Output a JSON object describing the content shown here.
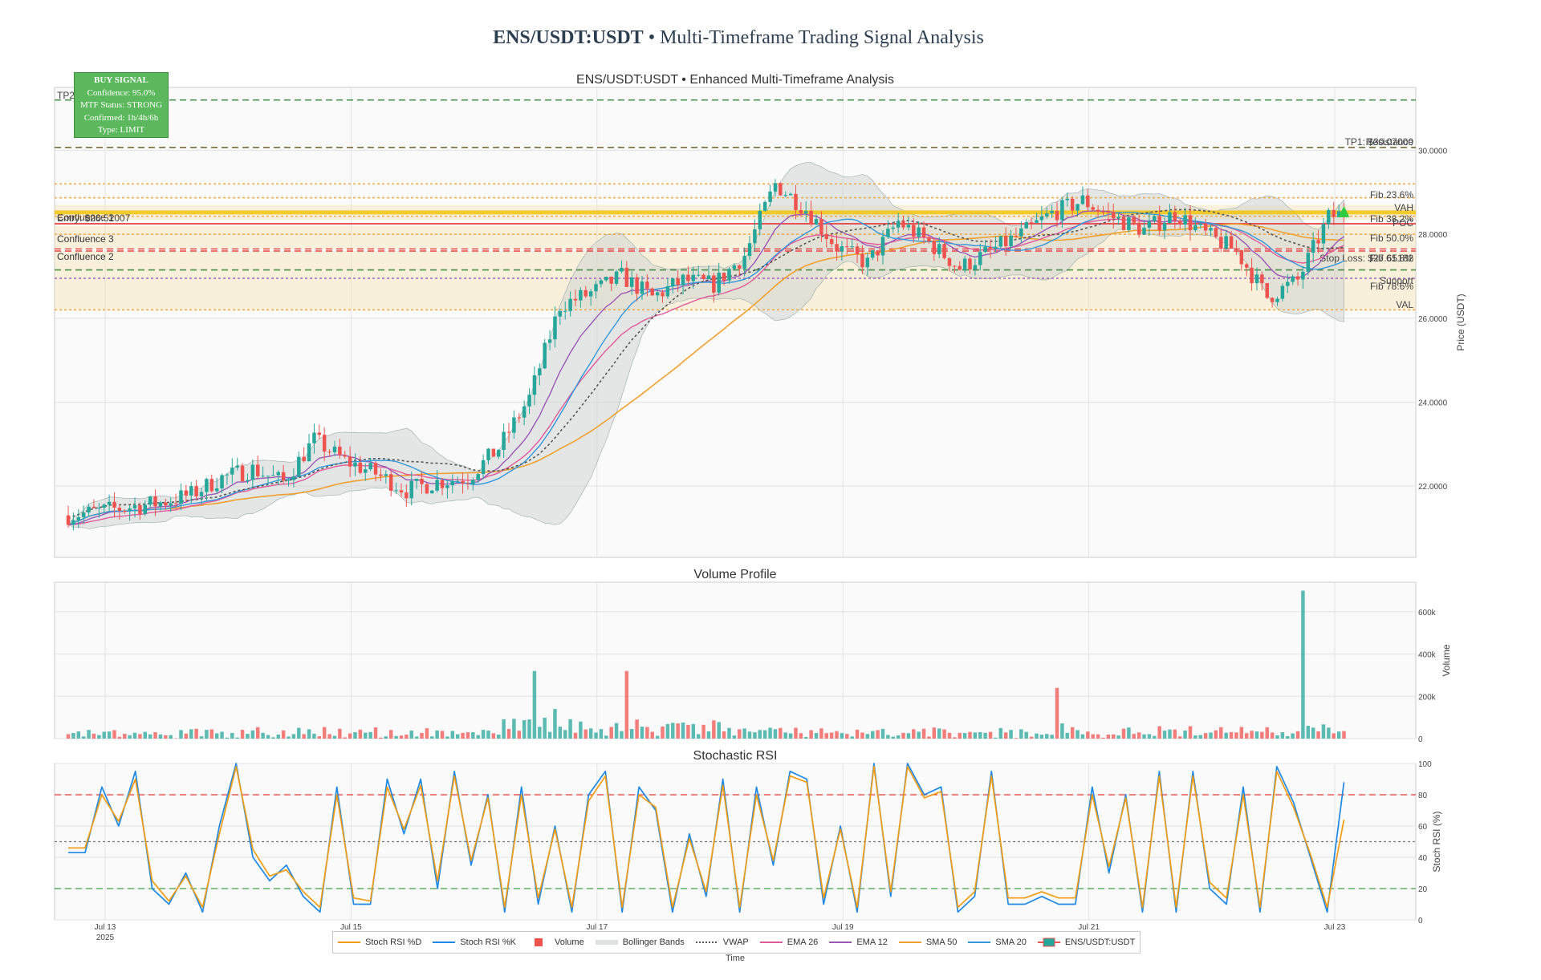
{
  "page": {
    "title_bold": "ENS/USDT:USDT",
    "title_rest": " • Multi-Timeframe Trading Signal Analysis"
  },
  "signal_box": {
    "header": "BUY SIGNAL",
    "lines": [
      "Confidence: 95.0%",
      "MTF Status: STRONG",
      "Confirmed: 1h/4h/6h",
      "Type: LIMIT"
    ],
    "color": "#5cb85c"
  },
  "legend": {
    "items": [
      {
        "label": "Stoch RSI %D",
        "kind": "line",
        "color": "#f39c12"
      },
      {
        "label": "Stoch RSI %K",
        "kind": "line",
        "color": "#1e88e5"
      },
      {
        "label": "Volume",
        "kind": "square",
        "color": "#ef5350"
      },
      {
        "label": "Bollinger Bands",
        "kind": "band",
        "color": "#c9cfcf"
      },
      {
        "label": "VWAP",
        "kind": "dot",
        "color": "#555555"
      },
      {
        "label": "EMA 26",
        "kind": "line",
        "color": "#e05a9a"
      },
      {
        "label": "EMA 12",
        "kind": "line",
        "color": "#9b59b6"
      },
      {
        "label": "SMA 50",
        "kind": "line",
        "color": "#f0a030"
      },
      {
        "label": "SMA 20",
        "kind": "line",
        "color": "#3498db"
      },
      {
        "label": "ENS/USDT:USDT",
        "kind": "candle",
        "color": "#26a69a"
      }
    ]
  },
  "chart_data": [
    {
      "type": "candlestick",
      "title": "ENS/USDT:USDT • Enhanced Multi-Timeframe Analysis",
      "ylabel": "Price (USDT)",
      "y_ticks": [
        "22.0000",
        "24.0000",
        "26.0000",
        "28.0000",
        "30.0000"
      ],
      "ylim": [
        20.3,
        31.5
      ],
      "x_ticks": [
        "Jul 13",
        "Jul 15",
        "Jul 17",
        "Jul 19",
        "Jul 21",
        "Jul 23"
      ],
      "x_tick_sub": "2025",
      "xlabel": "Time",
      "colors": {
        "up": "#26a69a",
        "down": "#ef5350"
      },
      "close_series": [
        {
          "date": "Jul 12 18:00",
          "close": 21.3
        },
        {
          "date": "Jul 13 00:00",
          "close": 21.4
        },
        {
          "date": "Jul 13 06:00",
          "close": 21.5
        },
        {
          "date": "Jul 13 12:00",
          "close": 21.6
        },
        {
          "date": "Jul 13 18:00",
          "close": 21.8
        },
        {
          "date": "Jul 14 00:00",
          "close": 22.2
        },
        {
          "date": "Jul 14 06:00",
          "close": 22.4
        },
        {
          "date": "Jul 14 12:00",
          "close": 22.1
        },
        {
          "date": "Jul 14 18:00",
          "close": 23.1
        },
        {
          "date": "Jul 15 00:00",
          "close": 22.6
        },
        {
          "date": "Jul 15 06:00",
          "close": 22.3
        },
        {
          "date": "Jul 15 12:00",
          "close": 21.9
        },
        {
          "date": "Jul 15 18:00",
          "close": 22.1
        },
        {
          "date": "Jul 16 00:00",
          "close": 22.2
        },
        {
          "date": "Jul 16 06:00",
          "close": 22.9
        },
        {
          "date": "Jul 16 12:00",
          "close": 24.1
        },
        {
          "date": "Jul 16 18:00",
          "close": 26.3
        },
        {
          "date": "Jul 17 00:00",
          "close": 26.6
        },
        {
          "date": "Jul 17 06:00",
          "close": 27.0
        },
        {
          "date": "Jul 17 12:00",
          "close": 26.5
        },
        {
          "date": "Jul 17 18:00",
          "close": 26.9
        },
        {
          "date": "Jul 18 00:00",
          "close": 26.8
        },
        {
          "date": "Jul 18 06:00",
          "close": 27.5
        },
        {
          "date": "Jul 18 12:00",
          "close": 29.2
        },
        {
          "date": "Jul 18 18:00",
          "close": 28.6
        },
        {
          "date": "Jul 19 00:00",
          "close": 27.7
        },
        {
          "date": "Jul 19 06:00",
          "close": 27.3
        },
        {
          "date": "Jul 19 12:00",
          "close": 28.3
        },
        {
          "date": "Jul 19 18:00",
          "close": 27.8
        },
        {
          "date": "Jul 20 00:00",
          "close": 27.2
        },
        {
          "date": "Jul 20 06:00",
          "close": 27.6
        },
        {
          "date": "Jul 20 12:00",
          "close": 28.0
        },
        {
          "date": "Jul 20 18:00",
          "close": 28.5
        },
        {
          "date": "Jul 21 00:00",
          "close": 28.8
        },
        {
          "date": "Jul 21 06:00",
          "close": 28.4
        },
        {
          "date": "Jul 21 12:00",
          "close": 28.1
        },
        {
          "date": "Jul 21 18:00",
          "close": 28.5
        },
        {
          "date": "Jul 22 00:00",
          "close": 28.0
        },
        {
          "date": "Jul 22 06:00",
          "close": 27.6
        },
        {
          "date": "Jul 22 12:00",
          "close": 26.5
        },
        {
          "date": "Jul 22 18:00",
          "close": 26.9
        },
        {
          "date": "Jul 23 00:00",
          "close": 28.4
        },
        {
          "date": "Jul 23 06:00",
          "close": 28.6
        }
      ],
      "levels": [
        {
          "label": "TP2",
          "value": 31.2,
          "color": "#2e7d32",
          "style": "dash"
        },
        {
          "label": "TP1: $30.07000",
          "value": 30.07,
          "color": "#2e7d32",
          "style": "dash"
        },
        {
          "label": "Resistance",
          "value": 30.07,
          "color": "#8d6e3f",
          "style": "dash"
        },
        {
          "label": "Fib 23.6%",
          "value": 29.2,
          "color": "#f0a030",
          "style": "dot"
        },
        {
          "label": "VAH",
          "value": 28.87,
          "color": "#f0a030",
          "style": "dot"
        },
        {
          "label": "Entry: $28.52007",
          "value": 28.52,
          "color": "#f1c40f",
          "style": "solid"
        },
        {
          "label": "Fib 38.2%",
          "value": 28.43,
          "color": "#f0a030",
          "style": "dot"
        },
        {
          "label": "POC",
          "value": 28.25,
          "color": "#e53935",
          "style": "solid"
        },
        {
          "label": "Fib 50.0%",
          "value": 28.0,
          "color": "#f0a030",
          "style": "dot"
        },
        {
          "label": "Fib 61.8%",
          "value": 27.6,
          "color": "#e53935",
          "style": "dash"
        },
        {
          "label": "Stop Loss: $27.65182",
          "value": 27.65,
          "color": "#e53935",
          "style": "dash"
        },
        {
          "label": "Support",
          "value": 27.15,
          "color": "#2e7d32",
          "style": "dash"
        },
        {
          "label": "Fib 78.6%",
          "value": 26.95,
          "color": "#9b59b6",
          "style": "dot"
        },
        {
          "label": "VAL",
          "value": 26.2,
          "color": "#f0a030",
          "style": "dot"
        }
      ],
      "zones": [
        {
          "label": "Confluence 1",
          "from": 28.35,
          "to": 28.7
        },
        {
          "label": "Confluence 2",
          "from": 26.2,
          "to": 27.6
        },
        {
          "label": "Confluence 3",
          "from": 27.65,
          "to": 28.2
        }
      ]
    },
    {
      "type": "bar",
      "title": "Volume Profile",
      "ylabel": "Volume",
      "y_ticks": [
        "0",
        "200k",
        "400k",
        "600k"
      ],
      "ylim": [
        0,
        740000
      ],
      "notable_values": [
        {
          "date": "Jul 16 12:00",
          "volume": 320000
        },
        {
          "date": "Jul 17 06:00",
          "volume": 320000
        },
        {
          "date": "Jul 20 18:00",
          "volume": 240000
        },
        {
          "date": "Jul 22 18:00",
          "volume": 700000
        }
      ]
    },
    {
      "type": "line",
      "title": "Stochastic RSI",
      "ylabel": "Stoch RSI (%)",
      "y_ticks": [
        "0",
        "20",
        "40",
        "60",
        "80",
        "100"
      ],
      "ylim": [
        0,
        100
      ],
      "reference_lines": [
        {
          "value": 80,
          "color": "#e53935"
        },
        {
          "value": 50,
          "color": "#777777"
        },
        {
          "value": 20,
          "color": "#43a047"
        }
      ],
      "series": [
        {
          "name": "Stoch RSI %K",
          "color": "#1e88e5",
          "values": [
            43,
            43,
            85,
            60,
            95,
            20,
            10,
            30,
            5,
            60,
            100,
            40,
            25,
            35,
            15,
            5,
            85,
            10,
            10,
            90,
            55,
            90,
            20,
            95,
            35,
            80,
            5,
            85,
            10,
            60,
            5,
            80,
            95,
            5,
            85,
            70,
            5,
            55,
            15,
            90,
            5,
            85,
            35,
            95,
            90,
            10,
            60,
            5,
            100,
            15,
            100,
            80,
            85,
            5,
            15,
            95,
            10,
            10,
            15,
            10,
            10,
            85,
            30,
            80,
            5,
            95,
            5,
            95,
            20,
            10,
            85,
            5,
            98,
            75,
            40,
            5,
            88
          ]
        },
        {
          "name": "Stoch RSI %D",
          "color": "#f39c12",
          "values": [
            46,
            46,
            80,
            63,
            90,
            25,
            12,
            28,
            8,
            55,
            98,
            45,
            28,
            32,
            18,
            8,
            80,
            14,
            12,
            85,
            58,
            86,
            25,
            92,
            38,
            78,
            8,
            80,
            14,
            58,
            8,
            76,
            92,
            8,
            80,
            72,
            8,
            52,
            18,
            86,
            8,
            80,
            38,
            92,
            88,
            14,
            58,
            8,
            98,
            18,
            98,
            78,
            82,
            8,
            18,
            92,
            14,
            14,
            18,
            14,
            14,
            80,
            34,
            78,
            8,
            92,
            8,
            92,
            24,
            14,
            80,
            8,
            95,
            72,
            42,
            8,
            64
          ]
        }
      ]
    }
  ]
}
